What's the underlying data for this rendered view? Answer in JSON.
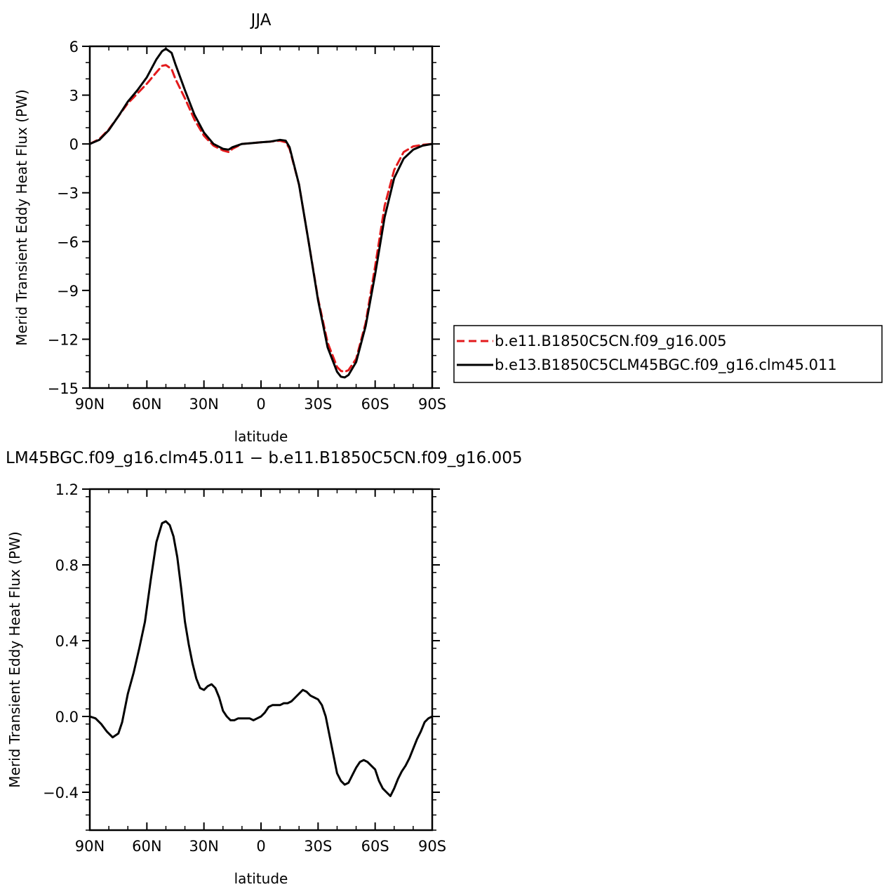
{
  "chart_data": [
    {
      "type": "line",
      "title": "JJA",
      "xlabel": "latitude",
      "ylabel": "Merid Transient Eddy Heat Flux (PW)",
      "xlim": [
        90,
        -90
      ],
      "ylim": [
        -15,
        6
      ],
      "x_ticks": [
        90,
        60,
        30,
        0,
        -30,
        -60,
        -90
      ],
      "x_tick_labels": [
        "90N",
        "60N",
        "30N",
        "0",
        "30S",
        "60S",
        "90S"
      ],
      "y_ticks": [
        6,
        3,
        0,
        -3,
        -6,
        -9,
        -12,
        -15
      ],
      "y_tick_labels": [
        "6",
        "3",
        "0",
        "−3",
        "−6",
        "−9",
        "−12",
        "−15"
      ],
      "grid": false,
      "legend_position": "right",
      "series": [
        {
          "name": "b.e11.B1850C5CN.f09_g16.005",
          "color": "#e31a1c",
          "dash": "dashed",
          "x": [
            90,
            85,
            80,
            75,
            70,
            65,
            60,
            55,
            52,
            50,
            47,
            45,
            40,
            35,
            30,
            25,
            20,
            17,
            15,
            10,
            5,
            0,
            -5,
            -10,
            -13,
            -15,
            -20,
            -25,
            -30,
            -35,
            -40,
            -42,
            -44,
            -46,
            -50,
            -55,
            -60,
            -65,
            -70,
            -75,
            -80,
            -85,
            -90
          ],
          "values": [
            0,
            0.3,
            0.9,
            1.7,
            2.5,
            3.1,
            3.7,
            4.4,
            4.8,
            4.85,
            4.6,
            4.0,
            2.8,
            1.5,
            0.5,
            -0.1,
            -0.4,
            -0.5,
            -0.3,
            0,
            0.05,
            0.1,
            0.15,
            0.2,
            0.1,
            -0.3,
            -2.5,
            -6.0,
            -9.5,
            -12.2,
            -13.7,
            -13.95,
            -14.0,
            -13.9,
            -13.2,
            -11.0,
            -7.5,
            -3.8,
            -1.6,
            -0.5,
            -0.15,
            -0.05,
            0
          ]
        },
        {
          "name": "b.e13.B1850C5CLM45BGC.f09_g16.clm45.011",
          "color": "#000000",
          "dash": "solid",
          "x": [
            90,
            85,
            80,
            75,
            70,
            65,
            60,
            55,
            52,
            50,
            47,
            45,
            40,
            35,
            30,
            25,
            20,
            17,
            15,
            10,
            5,
            0,
            -5,
            -10,
            -13,
            -15,
            -20,
            -25,
            -30,
            -35,
            -40,
            -42,
            -44,
            -46,
            -50,
            -55,
            -60,
            -65,
            -70,
            -75,
            -80,
            -85,
            -90
          ],
          "values": [
            0,
            0.25,
            0.85,
            1.7,
            2.6,
            3.3,
            4.1,
            5.2,
            5.7,
            5.85,
            5.6,
            4.9,
            3.3,
            1.8,
            0.7,
            0.0,
            -0.3,
            -0.35,
            -0.2,
            0,
            0.05,
            0.1,
            0.15,
            0.25,
            0.2,
            -0.2,
            -2.5,
            -6.0,
            -9.6,
            -12.5,
            -14.0,
            -14.3,
            -14.35,
            -14.2,
            -13.4,
            -11.2,
            -8.0,
            -4.5,
            -2.1,
            -0.9,
            -0.35,
            -0.1,
            0
          ]
        }
      ]
    },
    {
      "type": "line",
      "title": "LM45BGC.f09_g16.clm45.011 − b.e11.B1850C5CN.f09_g16.005",
      "xlabel": "latitude",
      "ylabel": "Merid Transient Eddy Heat Flux (PW)",
      "xlim": [
        90,
        -90
      ],
      "ylim": [
        -0.6,
        1.2
      ],
      "x_ticks": [
        90,
        60,
        30,
        0,
        -30,
        -60,
        -90
      ],
      "x_tick_labels": [
        "90N",
        "60N",
        "30N",
        "0",
        "30S",
        "60S",
        "90S"
      ],
      "y_ticks": [
        1.2,
        0.8,
        0.4,
        0.0,
        -0.4
      ],
      "y_tick_labels": [
        "1.2",
        "0.8",
        "0.4",
        "0.0",
        "−0.4"
      ],
      "grid": false,
      "series": [
        {
          "name": "",
          "color": "#000000",
          "dash": "solid",
          "x": [
            90,
            87,
            84,
            81,
            78,
            75,
            73,
            70,
            67,
            64,
            61,
            58,
            55,
            52,
            50,
            48,
            46,
            44,
            42,
            40,
            38,
            36,
            34,
            32,
            30,
            28,
            26,
            24,
            22,
            20,
            18,
            16,
            14,
            12,
            10,
            8,
            6,
            4,
            2,
            0,
            -2,
            -4,
            -6,
            -8,
            -10,
            -12,
            -14,
            -16,
            -18,
            -20,
            -22,
            -24,
            -26,
            -28,
            -30,
            -32,
            -34,
            -36,
            -38,
            -40,
            -42,
            -44,
            -46,
            -48,
            -50,
            -52,
            -54,
            -56,
            -58,
            -60,
            -62,
            -64,
            -66,
            -68,
            -70,
            -72,
            -74,
            -76,
            -78,
            -80,
            -82,
            -84,
            -86,
            -88,
            -90
          ],
          "values": [
            0,
            -0.01,
            -0.04,
            -0.08,
            -0.11,
            -0.09,
            -0.03,
            0.12,
            0.23,
            0.36,
            0.5,
            0.72,
            0.92,
            1.02,
            1.03,
            1.01,
            0.95,
            0.84,
            0.68,
            0.5,
            0.38,
            0.28,
            0.2,
            0.15,
            0.14,
            0.16,
            0.17,
            0.15,
            0.1,
            0.03,
            0.0,
            -0.02,
            -0.02,
            -0.01,
            -0.01,
            -0.01,
            -0.01,
            -0.02,
            -0.01,
            0.0,
            0.02,
            0.05,
            0.06,
            0.06,
            0.06,
            0.07,
            0.07,
            0.08,
            0.1,
            0.12,
            0.14,
            0.13,
            0.11,
            0.1,
            0.09,
            0.06,
            0.0,
            -0.1,
            -0.2,
            -0.3,
            -0.34,
            -0.36,
            -0.35,
            -0.31,
            -0.27,
            -0.24,
            -0.23,
            -0.24,
            -0.26,
            -0.28,
            -0.34,
            -0.38,
            -0.4,
            -0.42,
            -0.38,
            -0.33,
            -0.29,
            -0.26,
            -0.22,
            -0.17,
            -0.12,
            -0.08,
            -0.03,
            -0.01,
            0.0
          ]
        }
      ]
    }
  ]
}
